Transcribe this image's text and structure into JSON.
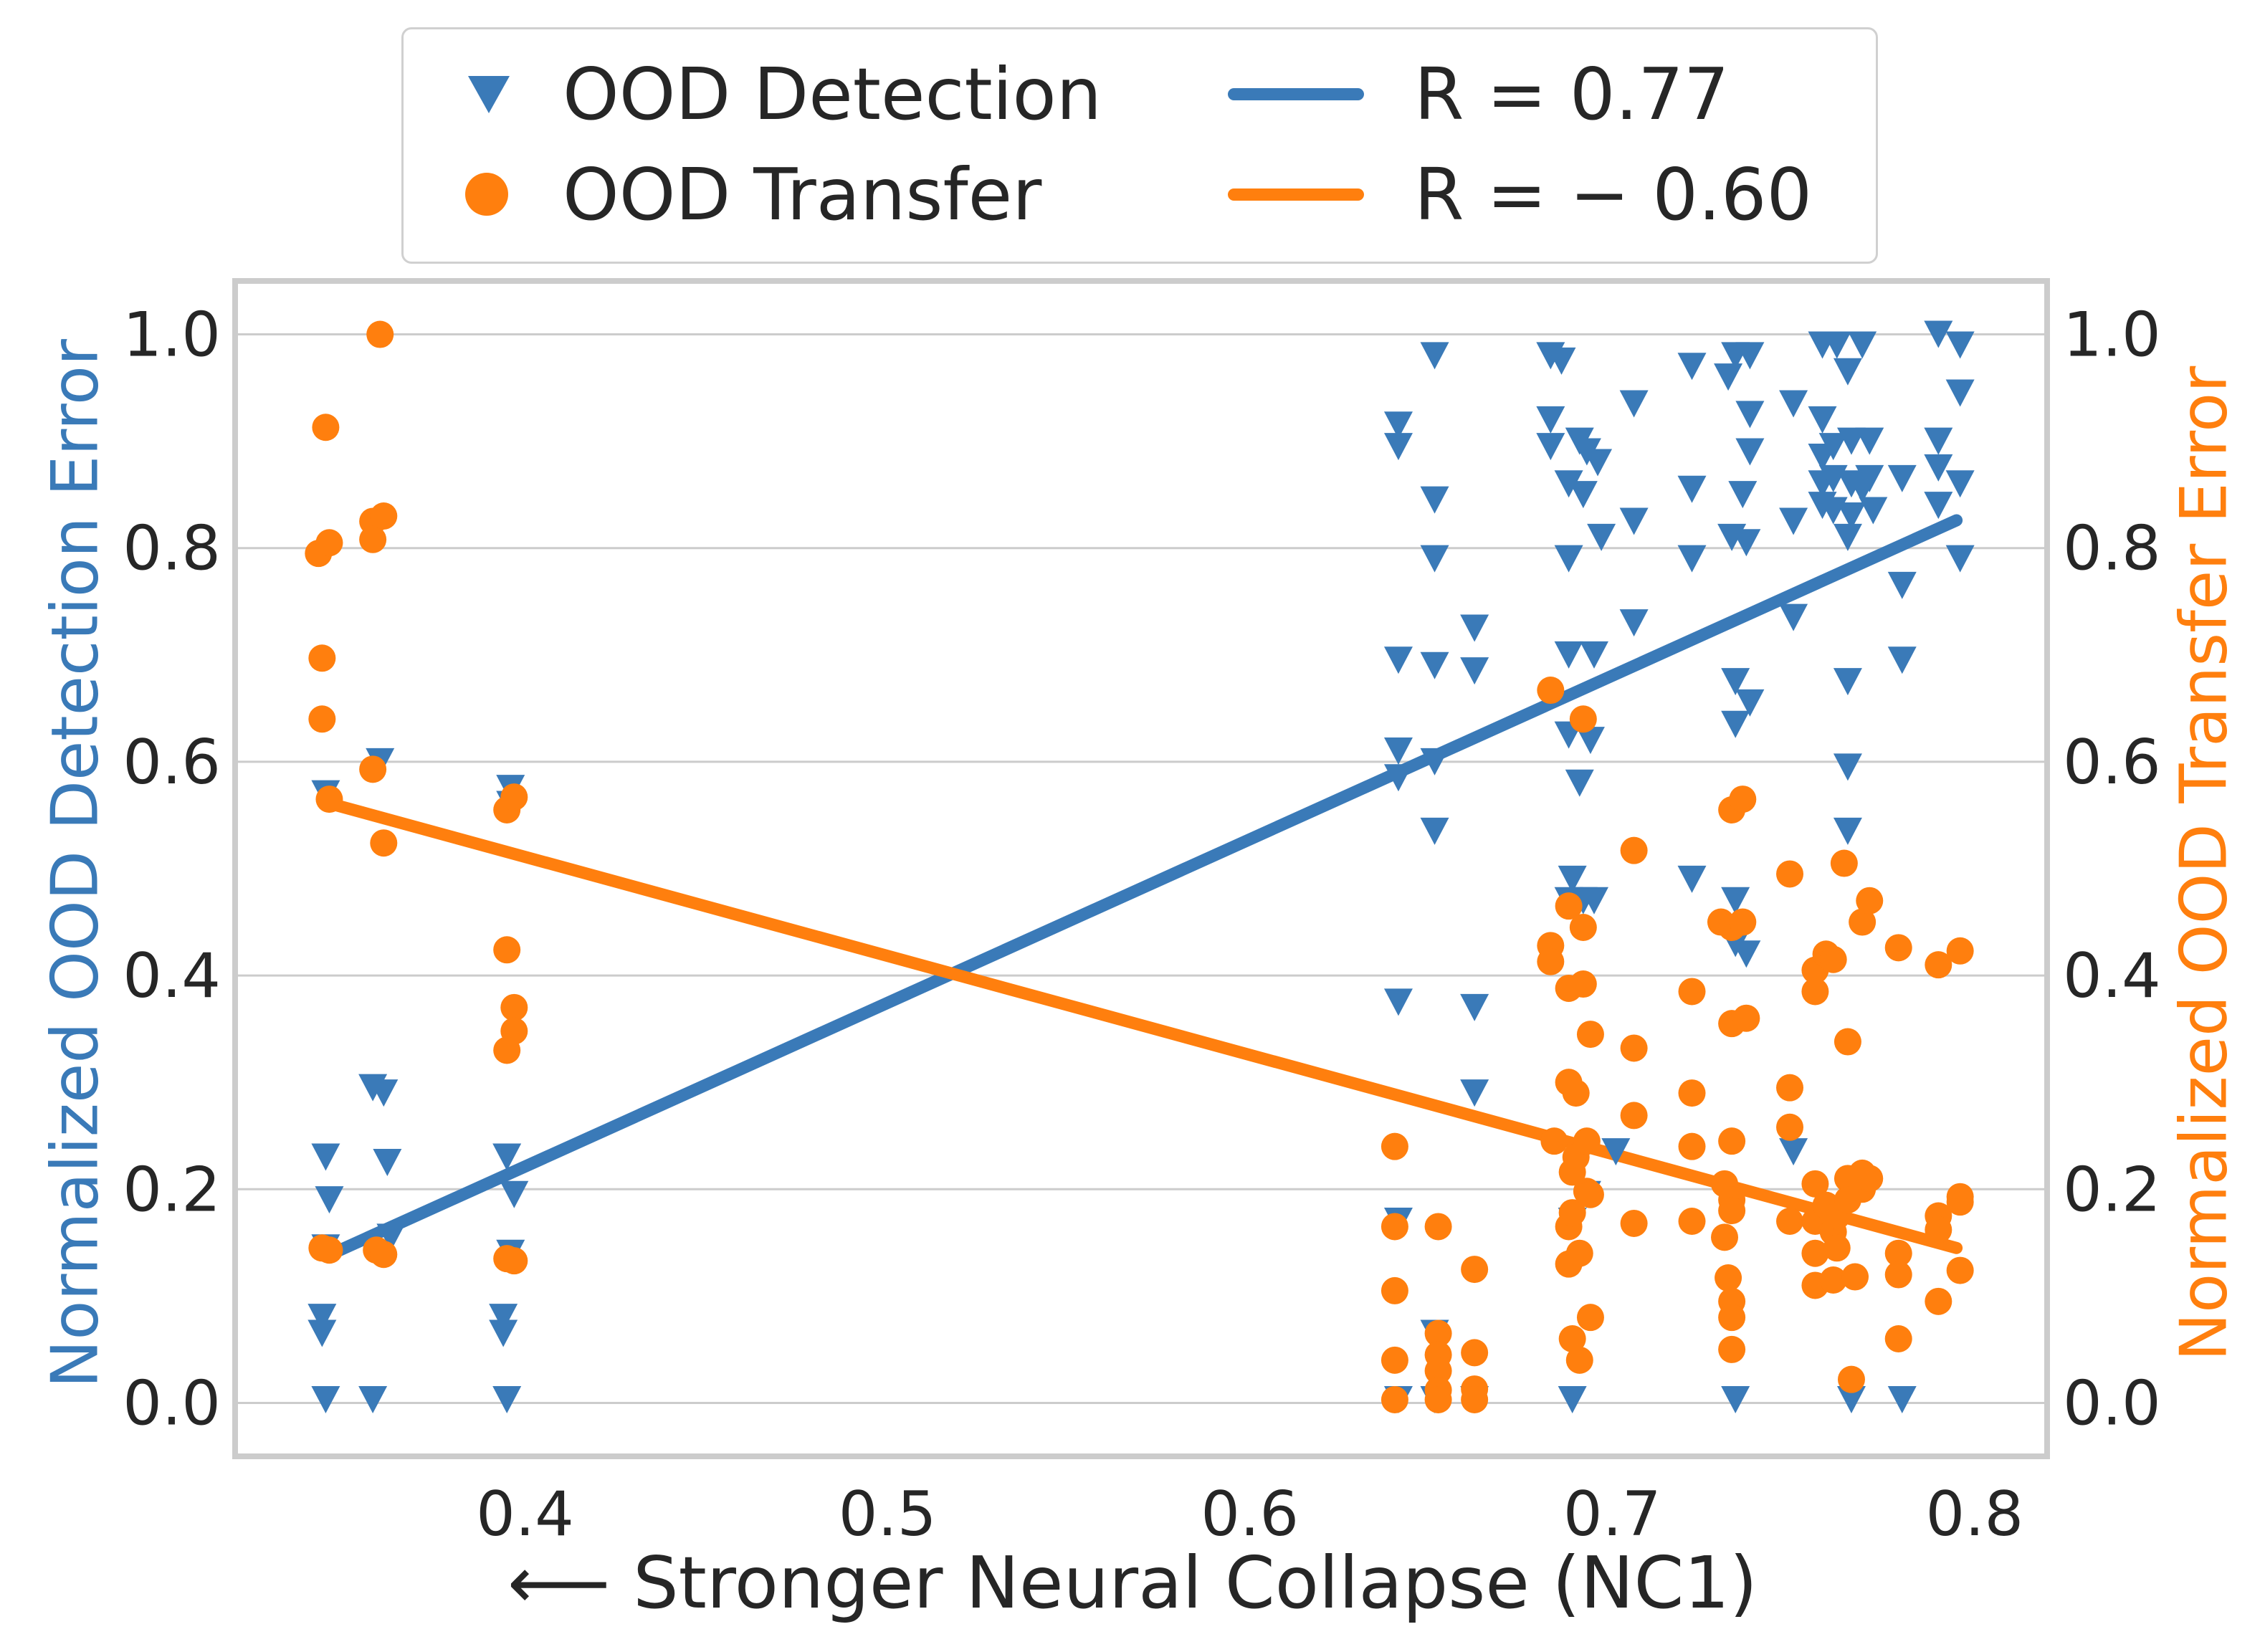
{
  "chart_data": {
    "type": "scatter",
    "xlabel": "⟵ Stronger Neural Collapse (NC1)",
    "ylabel_left": "Normalized OOD Detection Error",
    "ylabel_right": "Normalized OOD Transfer Error",
    "xlim": [
      0.32,
      0.82
    ],
    "ylim": [
      -0.05,
      1.05
    ],
    "xticks": [
      "0.4",
      "0.5",
      "0.6",
      "0.7",
      "0.8"
    ],
    "yticks": [
      "0.0",
      "0.2",
      "0.4",
      "0.6",
      "0.8",
      "1.0"
    ],
    "grid": true,
    "legend_position": "top-center",
    "colors": {
      "detection": "#3a7ab8",
      "transfer": "#ff7f0e",
      "grid": "#cccccc",
      "frame": "#cccccc",
      "text": "#262626"
    },
    "legend": {
      "detection_label": "OOD Detection",
      "transfer_label": "OOD Transfer",
      "detection_fit_label": "R = 0.77",
      "transfer_fit_label": "R = − 0.60"
    },
    "fits": [
      {
        "name": "R = 0.77",
        "x": [
          0.345,
          0.795
        ],
        "y": [
          0.137,
          0.826
        ]
      },
      {
        "name": "R = − 0.60",
        "x": [
          0.345,
          0.795
        ],
        "y": [
          0.562,
          0.145
        ]
      }
    ],
    "series": [
      {
        "name": "OOD Detection",
        "marker": "triangle-down",
        "points": [
          [
            0.345,
            0.57
          ],
          [
            0.345,
            0.23
          ],
          [
            0.346,
            0.19
          ],
          [
            0.345,
            0.145
          ],
          [
            0.344,
            0.08
          ],
          [
            0.344,
            0.065
          ],
          [
            0.345,
            0.003
          ],
          [
            0.36,
            0.6
          ],
          [
            0.358,
            0.295
          ],
          [
            0.361,
            0.29
          ],
          [
            0.362,
            0.225
          ],
          [
            0.363,
            0.155
          ],
          [
            0.358,
            0.003
          ],
          [
            0.396,
            0.575
          ],
          [
            0.396,
            0.56
          ],
          [
            0.395,
            0.23
          ],
          [
            0.397,
            0.195
          ],
          [
            0.396,
            0.14
          ],
          [
            0.394,
            0.08
          ],
          [
            0.394,
            0.065
          ],
          [
            0.395,
            0.003
          ],
          [
            0.641,
            0.915
          ],
          [
            0.641,
            0.895
          ],
          [
            0.641,
            0.695
          ],
          [
            0.641,
            0.61
          ],
          [
            0.641,
            0.585
          ],
          [
            0.641,
            0.375
          ],
          [
            0.641,
            0.17
          ],
          [
            0.641,
            0.003
          ],
          [
            0.651,
            0.98
          ],
          [
            0.651,
            0.845
          ],
          [
            0.651,
            0.79
          ],
          [
            0.651,
            0.69
          ],
          [
            0.651,
            0.6
          ],
          [
            0.651,
            0.535
          ],
          [
            0.651,
            0.065
          ],
          [
            0.651,
            0.003
          ],
          [
            0.662,
            0.725
          ],
          [
            0.662,
            0.685
          ],
          [
            0.662,
            0.37
          ],
          [
            0.662,
            0.29
          ],
          [
            0.662,
            0.003
          ],
          [
            0.683,
            0.98
          ],
          [
            0.683,
            0.92
          ],
          [
            0.683,
            0.895
          ],
          [
            0.686,
            0.975
          ],
          [
            0.688,
            0.86
          ],
          [
            0.688,
            0.79
          ],
          [
            0.688,
            0.7
          ],
          [
            0.688,
            0.625
          ],
          [
            0.689,
            0.49
          ],
          [
            0.688,
            0.47
          ],
          [
            0.689,
            0.17
          ],
          [
            0.689,
            0.003
          ],
          [
            0.691,
            0.9
          ],
          [
            0.692,
            0.85
          ],
          [
            0.693,
            0.89
          ],
          [
            0.691,
            0.58
          ],
          [
            0.692,
            0.47
          ],
          [
            0.693,
            0.195
          ],
          [
            0.694,
            0.62
          ],
          [
            0.695,
            0.7
          ],
          [
            0.695,
            0.47
          ],
          [
            0.696,
            0.88
          ],
          [
            0.697,
            0.81
          ],
          [
            0.701,
            0.235
          ],
          [
            0.706,
            0.935
          ],
          [
            0.706,
            0.825
          ],
          [
            0.706,
            0.73
          ],
          [
            0.722,
            0.97
          ],
          [
            0.722,
            0.855
          ],
          [
            0.722,
            0.79
          ],
          [
            0.722,
            0.49
          ],
          [
            0.732,
            0.96
          ],
          [
            0.733,
            0.81
          ],
          [
            0.734,
            0.98
          ],
          [
            0.734,
            0.675
          ],
          [
            0.734,
            0.635
          ],
          [
            0.734,
            0.47
          ],
          [
            0.734,
            0.43
          ],
          [
            0.734,
            0.003
          ],
          [
            0.736,
            0.85
          ],
          [
            0.737,
            0.805
          ],
          [
            0.737,
            0.42
          ],
          [
            0.738,
            0.98
          ],
          [
            0.738,
            0.925
          ],
          [
            0.738,
            0.89
          ],
          [
            0.738,
            0.655
          ],
          [
            0.75,
            0.935
          ],
          [
            0.75,
            0.825
          ],
          [
            0.75,
            0.735
          ],
          [
            0.75,
            0.235
          ],
          [
            0.758,
            0.92
          ],
          [
            0.758,
            0.885
          ],
          [
            0.758,
            0.86
          ],
          [
            0.758,
            0.84
          ],
          [
            0.758,
            0.99
          ],
          [
            0.761,
            0.895
          ],
          [
            0.761,
            0.865
          ],
          [
            0.761,
            0.835
          ],
          [
            0.762,
            0.99
          ],
          [
            0.765,
            0.965
          ],
          [
            0.766,
            0.9
          ],
          [
            0.766,
            0.86
          ],
          [
            0.766,
            0.83
          ],
          [
            0.765,
            0.81
          ],
          [
            0.765,
            0.675
          ],
          [
            0.765,
            0.595
          ],
          [
            0.765,
            0.535
          ],
          [
            0.766,
            0.003
          ],
          [
            0.769,
            0.99
          ],
          [
            0.769,
            0.855
          ],
          [
            0.771,
            0.9
          ],
          [
            0.771,
            0.865
          ],
          [
            0.772,
            0.835
          ],
          [
            0.78,
            0.865
          ],
          [
            0.78,
            0.765
          ],
          [
            0.78,
            0.695
          ],
          [
            0.78,
            0.003
          ],
          [
            0.79,
            1.0
          ],
          [
            0.79,
            0.9
          ],
          [
            0.79,
            0.875
          ],
          [
            0.79,
            0.84
          ],
          [
            0.796,
            0.99
          ],
          [
            0.796,
            0.945
          ],
          [
            0.796,
            0.86
          ],
          [
            0.796,
            0.79
          ]
        ]
      },
      {
        "name": "OOD Transfer",
        "marker": "circle",
        "points": [
          [
            0.343,
            0.795
          ],
          [
            0.344,
            0.697
          ],
          [
            0.344,
            0.64
          ],
          [
            0.345,
            0.913
          ],
          [
            0.346,
            0.805
          ],
          [
            0.346,
            0.565
          ],
          [
            0.344,
            0.145
          ],
          [
            0.346,
            0.143
          ],
          [
            0.358,
            0.825
          ],
          [
            0.358,
            0.808
          ],
          [
            0.358,
            0.593
          ],
          [
            0.36,
            1.0
          ],
          [
            0.361,
            0.83
          ],
          [
            0.361,
            0.524
          ],
          [
            0.359,
            0.143
          ],
          [
            0.361,
            0.139
          ],
          [
            0.395,
            0.555
          ],
          [
            0.397,
            0.567
          ],
          [
            0.395,
            0.424
          ],
          [
            0.397,
            0.37
          ],
          [
            0.397,
            0.348
          ],
          [
            0.395,
            0.33
          ],
          [
            0.395,
            0.135
          ],
          [
            0.397,
            0.133
          ],
          [
            0.64,
            0.24
          ],
          [
            0.64,
            0.165
          ],
          [
            0.64,
            0.105
          ],
          [
            0.64,
            0.04
          ],
          [
            0.64,
            0.003
          ],
          [
            0.652,
            0.165
          ],
          [
            0.652,
            0.065
          ],
          [
            0.652,
            0.045
          ],
          [
            0.652,
            0.03
          ],
          [
            0.652,
            0.012
          ],
          [
            0.652,
            0.003
          ],
          [
            0.662,
            0.125
          ],
          [
            0.662,
            0.047
          ],
          [
            0.662,
            0.013
          ],
          [
            0.662,
            0.003
          ],
          [
            0.683,
            0.667
          ],
          [
            0.683,
            0.428
          ],
          [
            0.683,
            0.413
          ],
          [
            0.684,
            0.245
          ],
          [
            0.688,
            0.465
          ],
          [
            0.688,
            0.388
          ],
          [
            0.688,
            0.3
          ],
          [
            0.688,
            0.165
          ],
          [
            0.688,
            0.13
          ],
          [
            0.689,
            0.06
          ],
          [
            0.689,
            0.178
          ],
          [
            0.689,
            0.216
          ],
          [
            0.69,
            0.29
          ],
          [
            0.69,
            0.23
          ],
          [
            0.691,
            0.04
          ],
          [
            0.691,
            0.14
          ],
          [
            0.692,
            0.445
          ],
          [
            0.692,
            0.392
          ],
          [
            0.692,
            0.64
          ],
          [
            0.693,
            0.198
          ],
          [
            0.693,
            0.245
          ],
          [
            0.694,
            0.345
          ],
          [
            0.694,
            0.195
          ],
          [
            0.694,
            0.08
          ],
          [
            0.706,
            0.517
          ],
          [
            0.706,
            0.332
          ],
          [
            0.706,
            0.269
          ],
          [
            0.706,
            0.168
          ],
          [
            0.722,
            0.385
          ],
          [
            0.722,
            0.29
          ],
          [
            0.722,
            0.24
          ],
          [
            0.722,
            0.17
          ],
          [
            0.73,
            0.45
          ],
          [
            0.731,
            0.205
          ],
          [
            0.731,
            0.155
          ],
          [
            0.732,
            0.117
          ],
          [
            0.733,
            0.555
          ],
          [
            0.733,
            0.445
          ],
          [
            0.733,
            0.355
          ],
          [
            0.733,
            0.245
          ],
          [
            0.733,
            0.19
          ],
          [
            0.733,
            0.18
          ],
          [
            0.733,
            0.095
          ],
          [
            0.733,
            0.08
          ],
          [
            0.733,
            0.05
          ],
          [
            0.736,
            0.565
          ],
          [
            0.736,
            0.45
          ],
          [
            0.737,
            0.36
          ],
          [
            0.749,
            0.495
          ],
          [
            0.749,
            0.295
          ],
          [
            0.749,
            0.258
          ],
          [
            0.749,
            0.17
          ],
          [
            0.756,
            0.405
          ],
          [
            0.756,
            0.385
          ],
          [
            0.756,
            0.205
          ],
          [
            0.756,
            0.17
          ],
          [
            0.756,
            0.14
          ],
          [
            0.756,
            0.11
          ],
          [
            0.759,
            0.42
          ],
          [
            0.759,
            0.185
          ],
          [
            0.761,
            0.415
          ],
          [
            0.761,
            0.16
          ],
          [
            0.761,
            0.115
          ],
          [
            0.762,
            0.175
          ],
          [
            0.762,
            0.145
          ],
          [
            0.764,
            0.505
          ],
          [
            0.765,
            0.338
          ],
          [
            0.765,
            0.21
          ],
          [
            0.765,
            0.19
          ],
          [
            0.766,
            0.022
          ],
          [
            0.767,
            0.118
          ],
          [
            0.769,
            0.45
          ],
          [
            0.769,
            0.215
          ],
          [
            0.769,
            0.2
          ],
          [
            0.771,
            0.47
          ],
          [
            0.771,
            0.21
          ],
          [
            0.779,
            0.426
          ],
          [
            0.779,
            0.14
          ],
          [
            0.779,
            0.12
          ],
          [
            0.779,
            0.06
          ],
          [
            0.79,
            0.41
          ],
          [
            0.79,
            0.175
          ],
          [
            0.79,
            0.162
          ],
          [
            0.79,
            0.095
          ],
          [
            0.796,
            0.423
          ],
          [
            0.796,
            0.193
          ],
          [
            0.796,
            0.188
          ],
          [
            0.796,
            0.124
          ]
        ]
      }
    ]
  }
}
